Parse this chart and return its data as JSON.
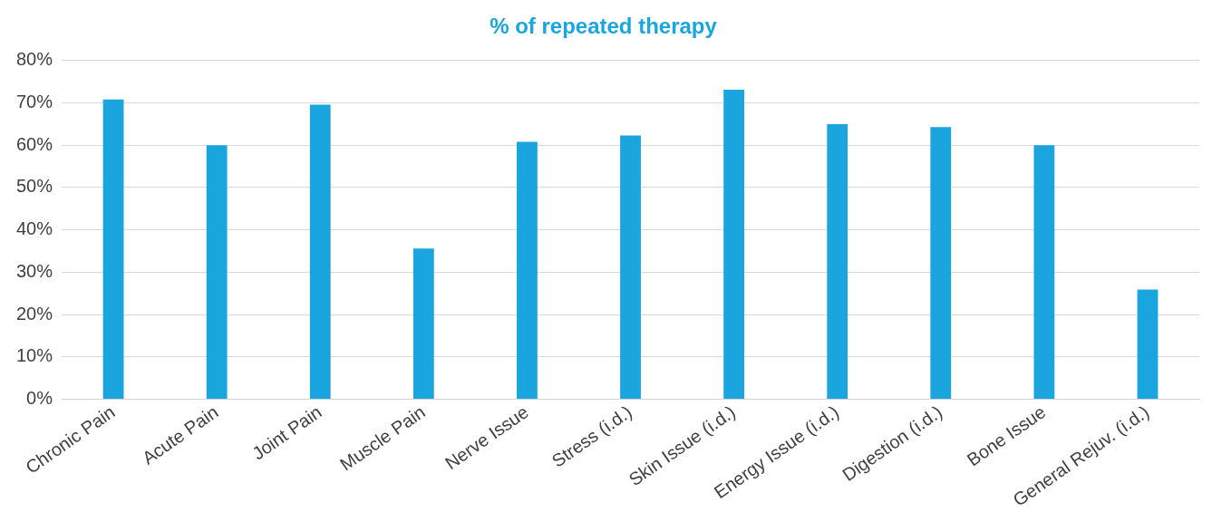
{
  "chart_data": {
    "type": "bar",
    "title": "% of repeated therapy",
    "categories": [
      "Chronic Pain",
      "Acute Pain",
      "Joint Pain",
      "Muscle Pain",
      "Nerve Issue",
      "Stress (i.d.)",
      "Skin Issue (i.d.)",
      "Energy Issue (i.d.)",
      "Digestion (i.d.)",
      "Bone Issue",
      "General Rejuv. (i.d.)"
    ],
    "values": [
      70.8,
      60,
      69.6,
      35.6,
      60.8,
      62.3,
      73.1,
      65,
      64.3,
      60,
      25.9
    ],
    "color": "#1ba5de",
    "ylim": [
      0,
      80
    ],
    "yticks": [
      {
        "value": 0,
        "label": "0%"
      },
      {
        "value": 10,
        "label": "10%"
      },
      {
        "value": 20,
        "label": "20%"
      },
      {
        "value": 30,
        "label": "30%"
      },
      {
        "value": 40,
        "label": "40%"
      },
      {
        "value": 50,
        "label": "50%"
      },
      {
        "value": 60,
        "label": "60%"
      },
      {
        "value": 70,
        "label": "70%"
      },
      {
        "value": 80,
        "label": "80%"
      }
    ],
    "grid": "y",
    "legend": false
  }
}
